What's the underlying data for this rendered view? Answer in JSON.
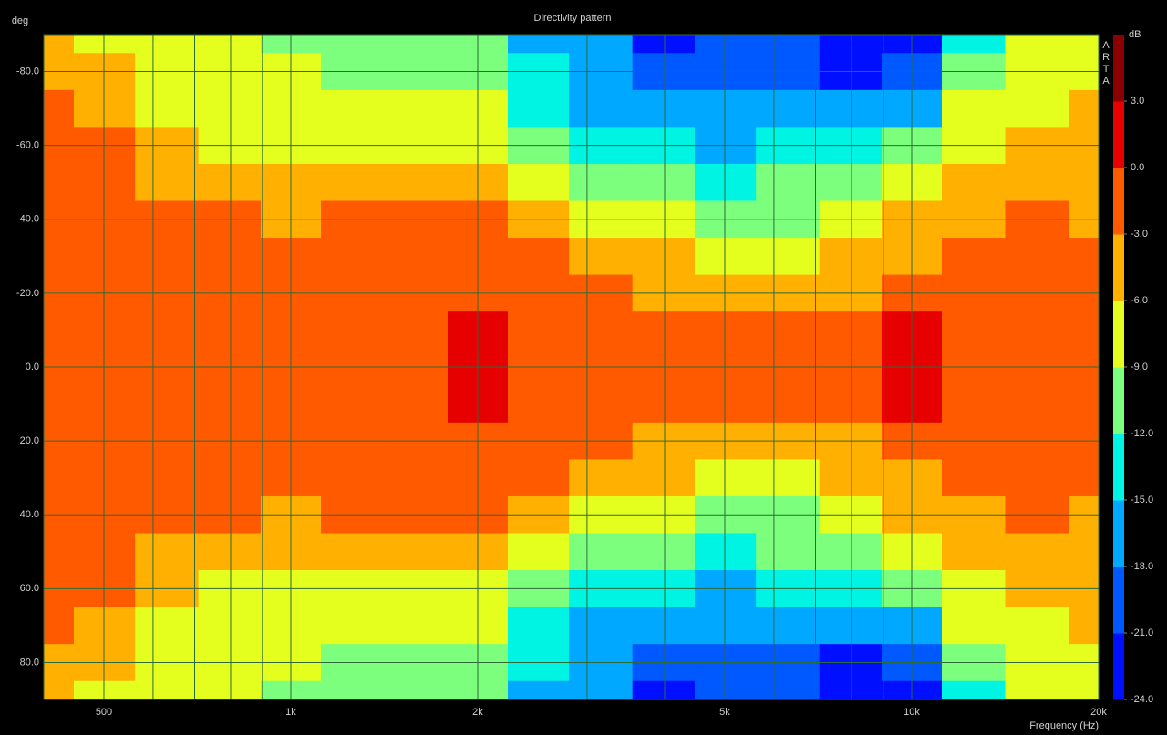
{
  "chart_data": {
    "type": "contour",
    "title": "Directivity pattern",
    "xlabel": "Frequency (Hz)",
    "ylabel": "deg",
    "colorbar_label": "dB",
    "brand": "ARTA",
    "xscale": "log",
    "grid": true,
    "xlim": [
      400,
      20000
    ],
    "ylim": [
      -90,
      90
    ],
    "xticks": [
      {
        "value": 500,
        "label": "500"
      },
      {
        "value": 1000,
        "label": "1k"
      },
      {
        "value": 2000,
        "label": "2k"
      },
      {
        "value": 5000,
        "label": "5k"
      },
      {
        "value": 10000,
        "label": "10k"
      },
      {
        "value": 20000,
        "label": "20k"
      }
    ],
    "x_minor_ticks": [
      600,
      700,
      800,
      900,
      3000,
      4000,
      6000,
      7000,
      8000,
      9000
    ],
    "yticks": [
      {
        "value": -80,
        "label": "-80.0"
      },
      {
        "value": -60,
        "label": "-60.0"
      },
      {
        "value": -40,
        "label": "-40.0"
      },
      {
        "value": -20,
        "label": "-20.0"
      },
      {
        "value": 0,
        "label": "0.0"
      },
      {
        "value": 20,
        "label": "20.0"
      },
      {
        "value": 40,
        "label": "40.0"
      },
      {
        "value": 60,
        "label": "60.0"
      },
      {
        "value": 80,
        "label": "80.0"
      }
    ],
    "levels": [
      -24,
      -21,
      -18,
      -15,
      -12,
      -9,
      -6,
      -3,
      0,
      3,
      6
    ],
    "colors": [
      "#0010ff",
      "#0058ff",
      "#00a8ff",
      "#00f4e4",
      "#7cff7c",
      "#e4ff1e",
      "#ffb000",
      "#ff5a00",
      "#e60000",
      "#8b0000"
    ],
    "colorbar_ticks": [
      {
        "value": 3,
        "label": "3.0"
      },
      {
        "value": 0,
        "label": "0.0"
      },
      {
        "value": -3,
        "label": "-3.0"
      },
      {
        "value": -6,
        "label": "-6.0"
      },
      {
        "value": -9,
        "label": "-9.0"
      },
      {
        "value": -12,
        "label": "-12.0"
      },
      {
        "value": -15,
        "label": "-15.0"
      },
      {
        "value": -18,
        "label": "-18.0"
      },
      {
        "value": -21,
        "label": "-21.0"
      },
      {
        "value": -24,
        "label": "-24.0"
      }
    ],
    "x": [
      400,
      500,
      630,
      800,
      1000,
      1250,
      1600,
      2000,
      2500,
      3150,
      4000,
      5000,
      6300,
      8000,
      10000,
      12500,
      16000,
      20000
    ],
    "y": [
      -90,
      -80,
      -70,
      -60,
      -50,
      -40,
      -30,
      -20,
      -10,
      0,
      10,
      20,
      30,
      40,
      50,
      60,
      70,
      80,
      90
    ],
    "z": [
      [
        -5,
        -4,
        -2.5,
        -2,
        -2,
        -2,
        -2,
        -2,
        -2,
        -2,
        -2,
        -2,
        -2,
        -2,
        -2,
        -2,
        -2.5,
        -4,
        -5
      ],
      [
        -6.5,
        -5,
        -4,
        -2.8,
        -1.5,
        -1.5,
        -1.5,
        -1.5,
        -1.5,
        -1.5,
        -1.5,
        -1.5,
        -1.5,
        -1.5,
        -1.5,
        -2.8,
        -4,
        -5,
        -6.5
      ],
      [
        -7.5,
        -7,
        -6.2,
        -5,
        -3.5,
        -2.5,
        -1.5,
        -1.5,
        -1.5,
        -1.5,
        -1.5,
        -1.5,
        -1.5,
        -2.5,
        -3.5,
        -5,
        -6.2,
        -7,
        -7.5
      ],
      [
        -8,
        -7.5,
        -7,
        -6.5,
        -4,
        -2.8,
        -1.5,
        -1.5,
        -1.5,
        -1.5,
        -1.5,
        -1.5,
        -1.5,
        -2.8,
        -4,
        -6.5,
        -7,
        -7.5,
        -8
      ],
      [
        -9.5,
        -8.5,
        -7.5,
        -7,
        -5.5,
        -3.5,
        -1.5,
        -1.5,
        -1.5,
        -1.5,
        -1.5,
        -1.5,
        -1.5,
        -3.5,
        -5.5,
        -7,
        -7.5,
        -8.5,
        -9.5
      ],
      [
        -10,
        -9.2,
        -7.5,
        -6.5,
        -5,
        -3,
        -1.5,
        -1.5,
        -1.5,
        -1.5,
        -1.5,
        -1.5,
        -1.5,
        -3,
        -5,
        -6.5,
        -7.5,
        -9.2,
        -10
      ],
      [
        -10.5,
        -9.5,
        -7.5,
        -6.5,
        -4.5,
        -2.5,
        -1.5,
        -1.5,
        -1.5,
        -1.5,
        -1.5,
        -1.5,
        -1.5,
        -2.5,
        -4.5,
        -6.5,
        -7.5,
        -9.5,
        -10.5
      ],
      [
        -12,
        -10.5,
        -8,
        -6.5,
        -3.5,
        -2,
        -1.5,
        -1,
        0.3,
        0.5,
        0.3,
        -1,
        -1.5,
        -2,
        -3.5,
        -6.5,
        -8,
        -10.5,
        -12
      ],
      [
        -15.5,
        -13,
        -12.5,
        -9.5,
        -6.5,
        -4,
        -2.5,
        -1.5,
        -1,
        -1,
        -1,
        -1.5,
        -2.5,
        -4,
        -6.5,
        -9.5,
        -12.5,
        -13,
        -15.5
      ],
      [
        -17,
        -17,
        -16,
        -14,
        -11,
        -8,
        -5,
        -2.5,
        -1.5,
        -1,
        -1.5,
        -2.5,
        -5,
        -8,
        -11,
        -14,
        -16,
        -17,
        -17
      ],
      [
        -22,
        -19,
        -16,
        -14,
        -12,
        -9,
        -6,
        -3.5,
        -1.5,
        -1,
        -1.5,
        -3.5,
        -6,
        -9,
        -12,
        -14,
        -16,
        -19,
        -22
      ],
      [
        -21,
        -20,
        -18,
        -16,
        -13,
        -10.5,
        -8,
        -4,
        -2,
        -1.5,
        -2,
        -4,
        -8,
        -10.5,
        -13,
        -16,
        -18,
        -20,
        -21
      ],
      [
        -20,
        -19,
        -17,
        -15,
        -12,
        -10,
        -7,
        -5,
        -2.5,
        -1.5,
        -2.5,
        -5,
        -7,
        -10,
        -12,
        -15,
        -17,
        -19,
        -20
      ],
      [
        -23,
        -22,
        -18,
        -14,
        -12,
        -8,
        -5,
        -4,
        -1.5,
        -1,
        -1.5,
        -4,
        -5,
        -8,
        -12,
        -14,
        -18,
        -22,
        -23
      ],
      [
        -22,
        -20,
        -16,
        -12,
        -9,
        -6,
        -3.5,
        -1,
        0.8,
        0.5,
        0.8,
        -1,
        -3.5,
        -6,
        -9,
        -12,
        -16,
        -20,
        -22
      ],
      [
        -13,
        -11,
        -9,
        -7,
        -6,
        -4.5,
        -3,
        -2,
        -1.5,
        -1.5,
        -1.5,
        -2,
        -3,
        -4.5,
        -6,
        -7,
        -9,
        -11,
        -13
      ],
      [
        -7.5,
        -7,
        -6.5,
        -4.5,
        -3.5,
        -2.5,
        -2,
        -1.5,
        -1.5,
        -1.5,
        -1.5,
        -1.5,
        -2,
        -2.5,
        -3.5,
        -4.5,
        -6.5,
        -7,
        -7.5
      ],
      [
        -7,
        -6.5,
        -5.5,
        -5,
        -4.5,
        -3.5,
        -2.5,
        -2,
        -2,
        -2,
        -2,
        -2,
        -2.5,
        -3.5,
        -4.5,
        -5,
        -5.5,
        -6.5,
        -7
      ]
    ]
  }
}
